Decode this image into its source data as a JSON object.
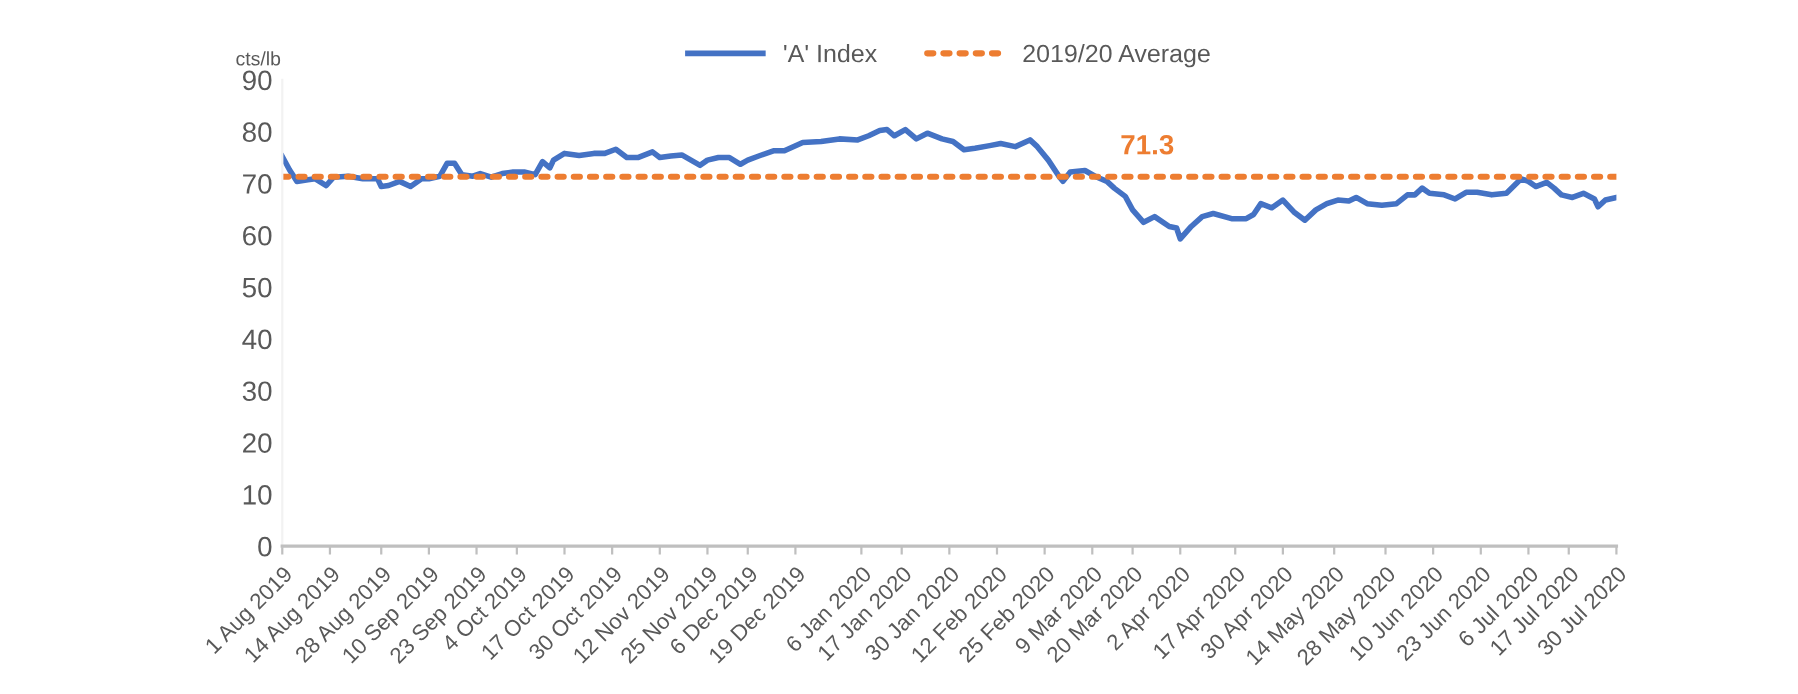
{
  "chart_data": {
    "type": "line",
    "ylabel": "cts/lb",
    "x": [
      "2019-08-01",
      "2019-08-03",
      "2019-08-05",
      "2019-08-08",
      "2019-08-10",
      "2019-08-13",
      "2019-08-15",
      "2019-08-19",
      "2019-08-23",
      "2019-08-27",
      "2019-08-28",
      "2019-08-30",
      "2019-09-02",
      "2019-09-05",
      "2019-09-08",
      "2019-09-10",
      "2019-09-13",
      "2019-09-15",
      "2019-09-17",
      "2019-09-19",
      "2019-09-22",
      "2019-09-24",
      "2019-09-27",
      "2019-09-30",
      "2019-10-03",
      "2019-10-06",
      "2019-10-09",
      "2019-10-11",
      "2019-10-13",
      "2019-10-14",
      "2019-10-17",
      "2019-10-21",
      "2019-10-25",
      "2019-10-28",
      "2019-10-31",
      "2019-11-03",
      "2019-11-06",
      "2019-11-10",
      "2019-11-12",
      "2019-11-15",
      "2019-11-18",
      "2019-11-23",
      "2019-11-25",
      "2019-11-28",
      "2019-12-01",
      "2019-12-04",
      "2019-12-06",
      "2019-12-09",
      "2019-12-13",
      "2019-12-16",
      "2019-12-21",
      "2019-12-26",
      "2019-12-31",
      "2020-01-05",
      "2020-01-08",
      "2020-01-11",
      "2020-01-13",
      "2020-01-15",
      "2020-01-18",
      "2020-01-21",
      "2020-01-24",
      "2020-01-28",
      "2020-01-31",
      "2020-02-03",
      "2020-02-06",
      "2020-02-10",
      "2020-02-13",
      "2020-02-17",
      "2020-02-21",
      "2020-02-23",
      "2020-02-26",
      "2020-02-29",
      "2020-03-01",
      "2020-03-03",
      "2020-03-07",
      "2020-03-10",
      "2020-03-13",
      "2020-03-15",
      "2020-03-18",
      "2020-03-20",
      "2020-03-23",
      "2020-03-26",
      "2020-03-30",
      "2020-04-01",
      "2020-04-02",
      "2020-04-05",
      "2020-04-08",
      "2020-04-11",
      "2020-04-16",
      "2020-04-20",
      "2020-04-22",
      "2020-04-24",
      "2020-04-27",
      "2020-04-30",
      "2020-05-03",
      "2020-05-06",
      "2020-05-09",
      "2020-05-12",
      "2020-05-15",
      "2020-05-18",
      "2020-05-20",
      "2020-05-23",
      "2020-05-27",
      "2020-05-31",
      "2020-06-03",
      "2020-06-05",
      "2020-06-07",
      "2020-06-09",
      "2020-06-13",
      "2020-06-16",
      "2020-06-19",
      "2020-06-22",
      "2020-06-26",
      "2020-06-30",
      "2020-07-04",
      "2020-07-06",
      "2020-07-08",
      "2020-07-11",
      "2020-07-13",
      "2020-07-15",
      "2020-07-18",
      "2020-07-21",
      "2020-07-24",
      "2020-07-25",
      "2020-07-27",
      "2020-07-30"
    ],
    "series": [
      {
        "name": "'A' Index",
        "color": "#4472c4",
        "line_style": "solid",
        "values": [
          75.2,
          72.6,
          70.4,
          70.7,
          70.9,
          69.6,
          71.2,
          71.4,
          70.9,
          70.9,
          69.4,
          69.6,
          70.4,
          69.4,
          70.9,
          70.9,
          71.4,
          73.9,
          73.9,
          71.7,
          71.4,
          71.9,
          71.2,
          71.9,
          72.2,
          72.2,
          71.7,
          74.2,
          73.0,
          74.5,
          75.8,
          75.4,
          75.8,
          75.8,
          76.6,
          75.0,
          75.0,
          76.1,
          75.0,
          75.3,
          75.5,
          73.5,
          74.5,
          75.0,
          75.0,
          73.7,
          74.5,
          75.3,
          76.3,
          76.3,
          77.9,
          78.1,
          78.6,
          78.4,
          79.2,
          80.2,
          80.4,
          79.2,
          80.4,
          78.6,
          79.7,
          78.6,
          78.1,
          76.5,
          76.8,
          77.3,
          77.7,
          77.1,
          78.4,
          77.1,
          74.5,
          71.3,
          70.4,
          72.2,
          72.5,
          71.3,
          70.4,
          69.1,
          67.5,
          64.9,
          62.5,
          63.6,
          61.7,
          61.4,
          59.3,
          61.7,
          63.6,
          64.2,
          63.2,
          63.2,
          64.0,
          66.1,
          65.3,
          66.8,
          64.5,
          62.9,
          64.9,
          66.1,
          66.8,
          66.6,
          67.3,
          66.1,
          65.8,
          66.1,
          67.8,
          67.8,
          69.1,
          68.1,
          67.8,
          67.0,
          68.3,
          68.3,
          67.8,
          68.1,
          70.9,
          70.4,
          69.4,
          70.2,
          69.1,
          67.8,
          67.3,
          68.1,
          67.0,
          65.5,
          66.8,
          67.3
        ]
      },
      {
        "name": "2019/20 Average",
        "color": "#ed7d31",
        "line_style": "dotted",
        "x": [
          "2019-08-01",
          "2020-07-30"
        ],
        "values": [
          71.3,
          71.3
        ]
      }
    ],
    "annotations": [
      {
        "text": "71.3",
        "x": "2020-03-24",
        "y": 71.3
      }
    ],
    "xlim": [
      "2019-08-01",
      "2020-07-30"
    ],
    "xticks": [
      {
        "value": "2019-08-01",
        "label": "1 Aug 2019"
      },
      {
        "value": "2019-08-14",
        "label": "14 Aug 2019"
      },
      {
        "value": "2019-08-28",
        "label": "28 Aug 2019"
      },
      {
        "value": "2019-09-10",
        "label": "10 Sep 2019"
      },
      {
        "value": "2019-09-23",
        "label": "23 Sep 2019"
      },
      {
        "value": "2019-10-04",
        "label": "4 Oct 2019"
      },
      {
        "value": "2019-10-17",
        "label": "17 Oct 2019"
      },
      {
        "value": "2019-10-30",
        "label": "30 Oct 2019"
      },
      {
        "value": "2019-11-12",
        "label": "12 Nov 2019"
      },
      {
        "value": "2019-11-25",
        "label": "25 Nov 2019"
      },
      {
        "value": "2019-12-06",
        "label": "6 Dec 2019"
      },
      {
        "value": "2019-12-19",
        "label": "19 Dec 2019"
      },
      {
        "value": "2020-01-06",
        "label": "6 Jan 2020"
      },
      {
        "value": "2020-01-17",
        "label": "17 Jan 2020"
      },
      {
        "value": "2020-01-30",
        "label": "30 Jan 2020"
      },
      {
        "value": "2020-02-12",
        "label": "12 Feb 2020"
      },
      {
        "value": "2020-02-25",
        "label": "25 Feb 2020"
      },
      {
        "value": "2020-03-09",
        "label": "9 Mar 2020"
      },
      {
        "value": "2020-03-20",
        "label": "20 Mar 2020"
      },
      {
        "value": "2020-04-02",
        "label": "2 Apr 2020"
      },
      {
        "value": "2020-04-17",
        "label": "17 Apr 2020"
      },
      {
        "value": "2020-04-30",
        "label": "30 Apr 2020"
      },
      {
        "value": "2020-05-14",
        "label": "14 May 2020"
      },
      {
        "value": "2020-05-28",
        "label": "28 May 2020"
      },
      {
        "value": "2020-06-10",
        "label": "10 Jun 2020"
      },
      {
        "value": "2020-06-23",
        "label": "23 Jun 2020"
      },
      {
        "value": "2020-07-06",
        "label": "6 Jul 2020"
      },
      {
        "value": "2020-07-17",
        "label": "17 Jul 2020"
      },
      {
        "value": "2020-07-30",
        "label": "30 Jul 2020"
      }
    ],
    "ylim": [
      0,
      90
    ],
    "yticks": [
      0,
      10,
      20,
      30,
      40,
      50,
      60,
      70,
      80,
      90
    ],
    "grid": false,
    "legend": "top",
    "marker": "none"
  }
}
